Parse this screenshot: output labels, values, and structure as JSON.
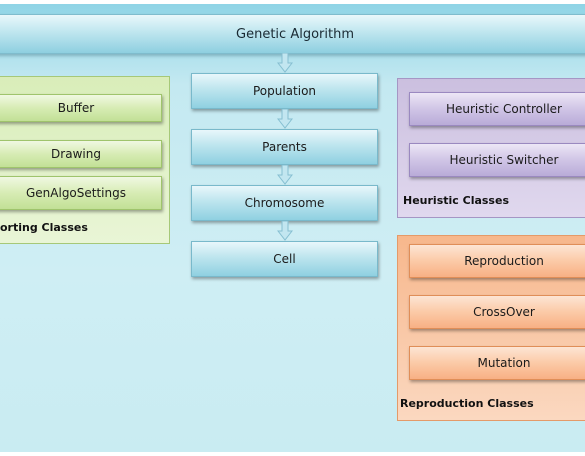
{
  "title": "Genetic Algorithm",
  "chain": [
    "Population",
    "Parents",
    "Chromosome",
    "Cell"
  ],
  "supporting": {
    "title": "orting Classes",
    "items": [
      "Buffer",
      "Drawing",
      "GenAlgoSettings"
    ]
  },
  "heuristic": {
    "title": "Heuristic Classes",
    "items": [
      "Heuristic Controller",
      "Heuristic Switcher"
    ]
  },
  "reproduction": {
    "title": "Reproduction Classes",
    "items": [
      "Reproduction",
      "CrossOver",
      "Mutation"
    ]
  }
}
